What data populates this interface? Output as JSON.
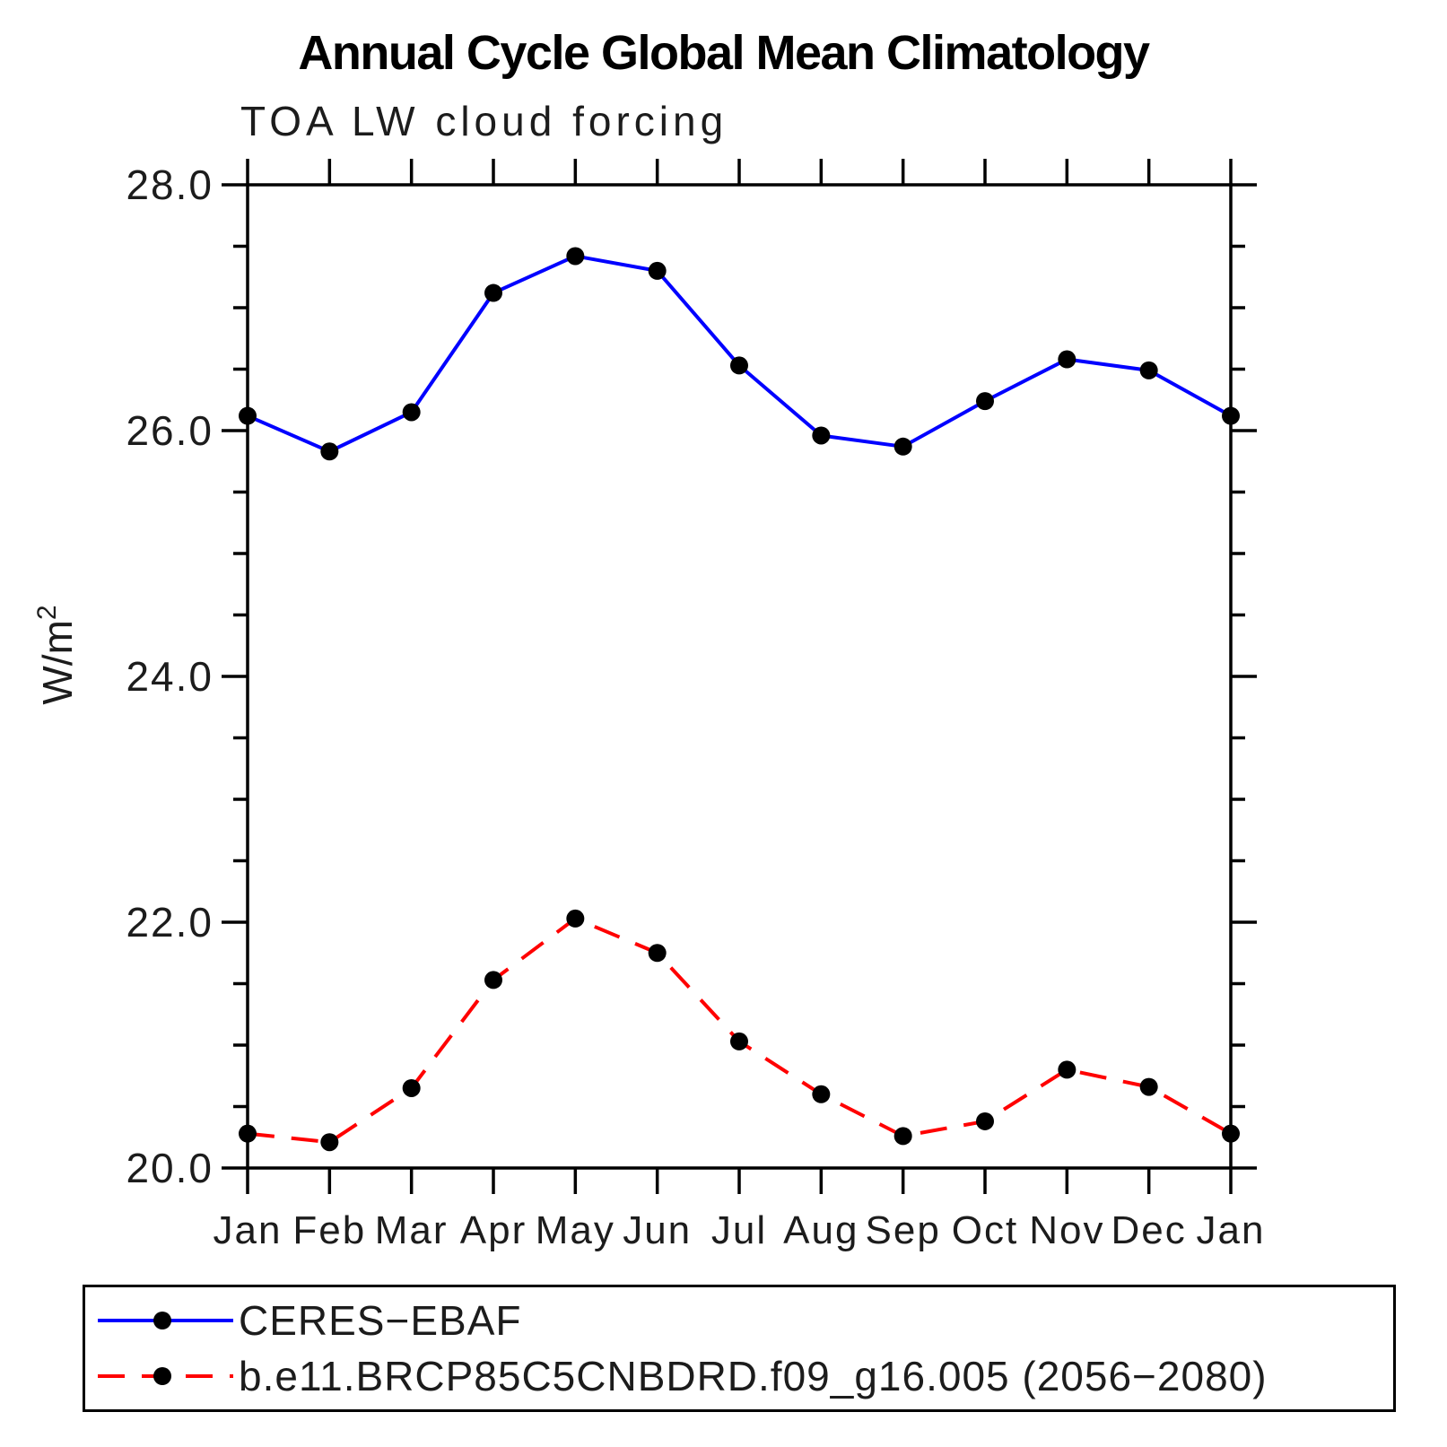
{
  "title": "Annual Cycle Global Mean Climatology",
  "subtitle": "TOA LW cloud forcing",
  "y_axis": {
    "label": "W/m",
    "label_exponent": "2",
    "tick_labels": [
      "20.0",
      "22.0",
      "24.0",
      "26.0",
      "28.0"
    ]
  },
  "chart_data": {
    "type": "line",
    "x_labels": [
      "Jan",
      "Feb",
      "Mar",
      "Apr",
      "May",
      "Jun",
      "Jul",
      "Aug",
      "Sep",
      "Oct",
      "Nov",
      "Dec",
      "Jan"
    ],
    "ylim": [
      20.0,
      28.0
    ],
    "ytick_values": [
      20.0,
      22.0,
      24.0,
      26.0,
      28.0
    ],
    "minor_tick_step": 0.5,
    "grid": false,
    "legend_position": "bottom",
    "title": "Annual Cycle Global Mean Climatology",
    "subtitle": "TOA LW cloud forcing",
    "ylabel": "W/m2",
    "series": [
      {
        "name": "CERES−EBAF",
        "color": "#0000ff",
        "style": "solid",
        "marker": "circle",
        "marker_color": "#000000",
        "values": [
          26.12,
          25.83,
          26.15,
          27.12,
          27.42,
          27.3,
          26.53,
          25.96,
          25.87,
          26.24,
          26.58,
          26.49,
          26.12
        ]
      },
      {
        "name": "b.e11.BRCP85C5CNBDRD.f09_g16.005 (2056−2080)",
        "color": "#ff0000",
        "style": "dashed",
        "marker": "circle",
        "marker_color": "#000000",
        "values": [
          20.28,
          20.21,
          20.65,
          21.53,
          22.03,
          21.75,
          21.03,
          20.6,
          20.26,
          20.38,
          20.8,
          20.66,
          20.28
        ]
      }
    ]
  }
}
